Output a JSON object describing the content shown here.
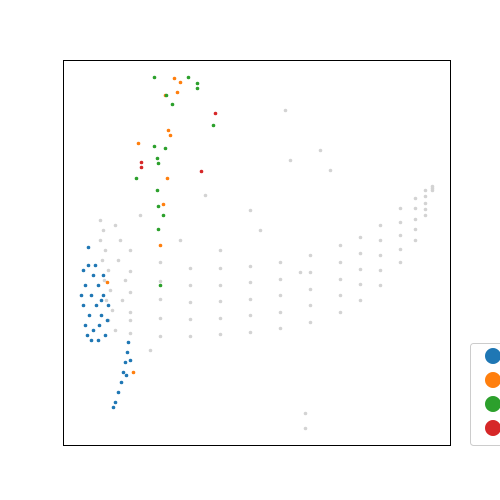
{
  "chart_data": {
    "type": "scatter",
    "xlim": [
      0,
      387
    ],
    "ylim": [
      0,
      385
    ],
    "series": [
      {
        "color": "#d3d3d3",
        "legend": false,
        "x": [
          67,
          67,
          67,
          67,
          67,
          97,
          97,
          97,
          97,
          97,
          127,
          127,
          127,
          127,
          127,
          157,
          157,
          157,
          157,
          157,
          187,
          187,
          187,
          187,
          187,
          217,
          217,
          217,
          217,
          217,
          247,
          247,
          247,
          247,
          247,
          277,
          277,
          277,
          277,
          277,
          297,
          297,
          297,
          297,
          297,
          317,
          317,
          317,
          317,
          317,
          337,
          337,
          337,
          337,
          337,
          352,
          352,
          352,
          352,
          352,
          362,
          362,
          362,
          362,
          362,
          369,
          369,
          369,
          37,
          40,
          37,
          42,
          39,
          45,
          41,
          47,
          43,
          49,
          45,
          52,
          57,
          55,
          62,
          59,
          67,
          52,
          222,
          227,
          257,
          267,
          187,
          142,
          117,
          237,
          77,
          87,
          242,
          242,
          197,
          157
        ],
        "y": [
          112,
          133,
          153,
          174,
          195,
          109,
          127,
          146,
          164,
          183,
          109,
          126,
          143,
          160,
          177,
          111,
          127,
          144,
          160,
          177,
          113,
          130,
          146,
          163,
          179,
          117,
          133,
          150,
          166,
          183,
          123,
          140,
          156,
          173,
          190,
          133,
          150,
          166,
          183,
          200,
          145,
          161,
          176,
          192,
          208,
          160,
          175,
          190,
          205,
          220,
          183,
          196,
          210,
          223,
          237,
          205,
          216,
          226,
          237,
          247,
          230,
          236,
          242,
          249,
          255,
          255,
          257,
          259,
          225,
          215,
          205,
          195,
          185,
          175,
          165,
          155,
          145,
          135,
          125,
          115,
          205,
          185,
          165,
          145,
          125,
          220,
          335,
          285,
          295,
          275,
          235,
          250,
          205,
          173,
          230,
          95,
          32,
          17,
          215,
          195
        ]
      },
      {
        "color": "#1f77b4",
        "legend": true,
        "x": [
          20,
          25,
          30,
          22,
          28,
          35,
          40,
          20,
          26,
          33,
          38,
          45,
          22,
          30,
          36,
          42,
          28,
          35,
          18,
          32,
          40,
          44,
          24,
          38,
          65,
          64,
          62,
          60,
          58,
          55,
          52,
          50,
          67,
          63,
          25
        ],
        "y": [
          175,
          180,
          170,
          160,
          150,
          160,
          150,
          140,
          130,
          140,
          130,
          140,
          120,
          115,
          120,
          110,
          105,
          105,
          150,
          180,
          170,
          125,
          110,
          145,
          103,
          93,
          83,
          73,
          63,
          53,
          43,
          38,
          85,
          70,
          198
        ]
      },
      {
        "color": "#ff7f0e",
        "legend": true,
        "x": [
          111,
          117,
          102,
          114,
          105,
          107,
          75,
          104,
          100,
          97,
          44,
          70
        ],
        "y": [
          367,
          363,
          350,
          353,
          315,
          310,
          302,
          267,
          241,
          200,
          163,
          73
        ]
      },
      {
        "color": "#2ca02c",
        "legend": true,
        "x": [
          91,
          125,
          134,
          134,
          103,
          109,
          150,
          102,
          91,
          94,
          95,
          73,
          94,
          95,
          100,
          95,
          97
        ],
        "y": [
          368,
          368,
          362,
          357,
          350,
          341,
          320,
          297,
          299,
          287,
          282,
          267,
          255,
          239,
          230,
          216,
          160
        ]
      },
      {
        "color": "#d62728",
        "legend": true,
        "x": [
          152,
          78,
          138,
          78
        ],
        "y": [
          332,
          283,
          274,
          278
        ]
      }
    ]
  }
}
